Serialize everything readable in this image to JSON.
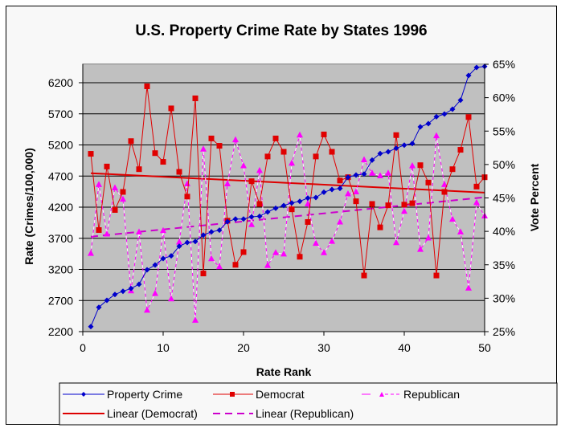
{
  "chart_data": {
    "type": "line",
    "title": "U.S. Property Crime Rate by States 1996",
    "xlabel": "Rate Rank",
    "ylabel": "Rate (Crimes/100,000)",
    "y2label": "Vote Percent",
    "xlim": [
      0,
      50
    ],
    "ylim": [
      2200,
      6500
    ],
    "y2lim": [
      25,
      65
    ],
    "xticks": [
      "0",
      "10",
      "20",
      "30",
      "40",
      "50"
    ],
    "yticks": [
      "2200",
      "2700",
      "3200",
      "3700",
      "4200",
      "4700",
      "5200",
      "5700",
      "6200"
    ],
    "y2ticks": [
      "25%",
      "30%",
      "35%",
      "40%",
      "45%",
      "50%",
      "55%",
      "60%",
      "65%"
    ],
    "grid": "horizontal",
    "legend_position": "bottom",
    "x": [
      1,
      2,
      3,
      4,
      5,
      6,
      7,
      8,
      9,
      10,
      11,
      12,
      13,
      14,
      15,
      16,
      17,
      18,
      19,
      20,
      21,
      22,
      23,
      24,
      25,
      26,
      27,
      28,
      29,
      30,
      31,
      32,
      33,
      34,
      35,
      36,
      37,
      38,
      39,
      40,
      41,
      42,
      43,
      44,
      45,
      46,
      47,
      48,
      49,
      50
    ],
    "series": [
      {
        "name": "Property Crime",
        "axis": "left",
        "color": "#0000cc",
        "marker": "diamond",
        "values": [
          2281,
          2591,
          2703,
          2797,
          2849,
          2893,
          2961,
          3194,
          3271,
          3374,
          3417,
          3572,
          3632,
          3649,
          3752,
          3804,
          3830,
          3968,
          4010,
          4010,
          4045,
          4054,
          4123,
          4183,
          4226,
          4268,
          4294,
          4346,
          4355,
          4441,
          4484,
          4501,
          4681,
          4716,
          4733,
          4957,
          5062,
          5090,
          5146,
          5197,
          5223,
          5490,
          5542,
          5654,
          5697,
          5774,
          5920,
          6316,
          6445,
          6462
        ]
      },
      {
        "name": "Democrat",
        "axis": "right",
        "color": "#e00000",
        "marker": "square",
        "values": [
          51.6,
          40.2,
          49.7,
          43.2,
          45.9,
          53.5,
          49.3,
          61.7,
          51.7,
          50.4,
          58.4,
          48.9,
          45.2,
          59.9,
          33.7,
          53.9,
          52.8,
          41.6,
          35.0,
          36.9,
          47.5,
          44.1,
          51.2,
          53.9,
          51.9,
          43.3,
          36.2,
          41.4,
          51.2,
          54.5,
          51.9,
          47.6,
          48.1,
          44.5,
          33.4,
          44.1,
          40.6,
          43.9,
          54.4,
          44.0,
          44.2,
          49.9,
          47.3,
          33.4,
          45.9,
          49.3,
          52.2,
          57.1,
          46.7,
          48.1
        ]
      },
      {
        "name": "Republican",
        "axis": "right",
        "color": "#ff00ff",
        "marker": "triangle",
        "values": [
          36.7,
          47.0,
          39.6,
          46.5,
          44.8,
          31.1,
          39.9,
          28.2,
          30.7,
          40.1,
          29.9,
          38.4,
          47.1,
          26.7,
          52.3,
          35.9,
          34.7,
          47.1,
          53.7,
          49.8,
          41.0,
          49.1,
          34.9,
          36.8,
          36.6,
          50.2,
          54.4,
          44.1,
          38.2,
          36.8,
          38.5,
          41.4,
          45.6,
          45.9,
          50.7,
          48.7,
          48.3,
          48.7,
          38.3,
          43.0,
          49.8,
          37.3,
          39.0,
          54.3,
          47.0,
          41.8,
          39.9,
          31.5,
          44.3,
          42.3
        ]
      },
      {
        "name": "Linear (Democrat)",
        "axis": "right",
        "color": "#dd0000",
        "style": "solid-thick",
        "values": [
          48.7,
          45.8
        ],
        "x": [
          1,
          50
        ]
      },
      {
        "name": "Linear (Republican)",
        "axis": "right",
        "color": "#cc00cc",
        "style": "dashed",
        "values": [
          39.2,
          45.1
        ],
        "x": [
          1,
          50
        ]
      }
    ]
  }
}
